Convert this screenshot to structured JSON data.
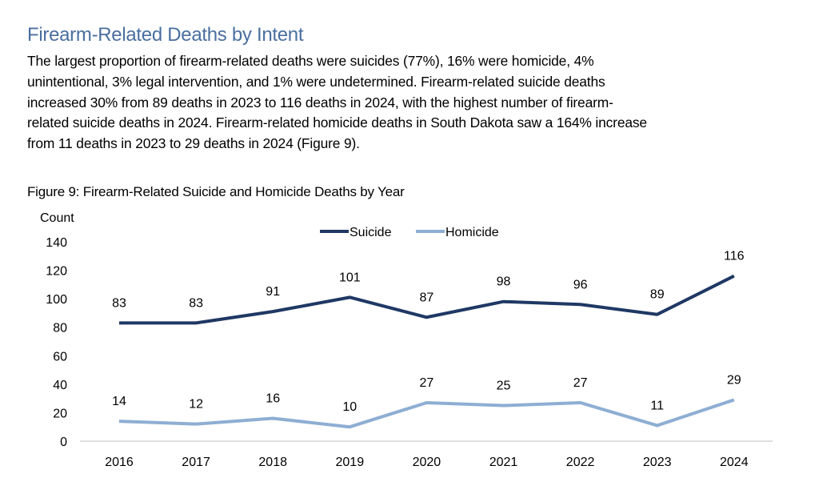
{
  "heading": "Firearm-Related Deaths by Intent",
  "paragraph_lines": [
    "The largest proportion of firearm-related deaths were suicides (77%), 16% were homicide, 4%",
    "unintentional, 3% legal intervention, and 1% were undetermined. Firearm-related suicide deaths",
    "increased 30% from 89 deaths in 2023 to 116 deaths in 2024, with the highest number of firearm-",
    "related suicide deaths in 2024. Firearm-related homicide deaths in South Dakota saw a 164% increase",
    "from 11 deaths in 2023 to 29 deaths in 2024 (Figure 9)."
  ],
  "chart_data": {
    "type": "line",
    "title": "Figure 9: Firearm-Related Suicide and Homicide Deaths by Year",
    "xlabel": "",
    "ylabel": "Count",
    "ylim": [
      0,
      140
    ],
    "yticks": [
      "0",
      "20",
      "40",
      "60",
      "80",
      "100",
      "120",
      "140"
    ],
    "categories": [
      "2016",
      "2017",
      "2018",
      "2019",
      "2020",
      "2021",
      "2022",
      "2023",
      "2024"
    ],
    "grid": false,
    "legend": "top-center",
    "series": [
      {
        "name": "Suicide",
        "color": "#1f3864",
        "values": [
          83,
          83,
          91,
          101,
          87,
          98,
          96,
          89,
          116
        ]
      },
      {
        "name": "Homicide",
        "color": "#8eaed3",
        "values": [
          14,
          12,
          16,
          10,
          27,
          25,
          27,
          11,
          29
        ]
      }
    ]
  }
}
